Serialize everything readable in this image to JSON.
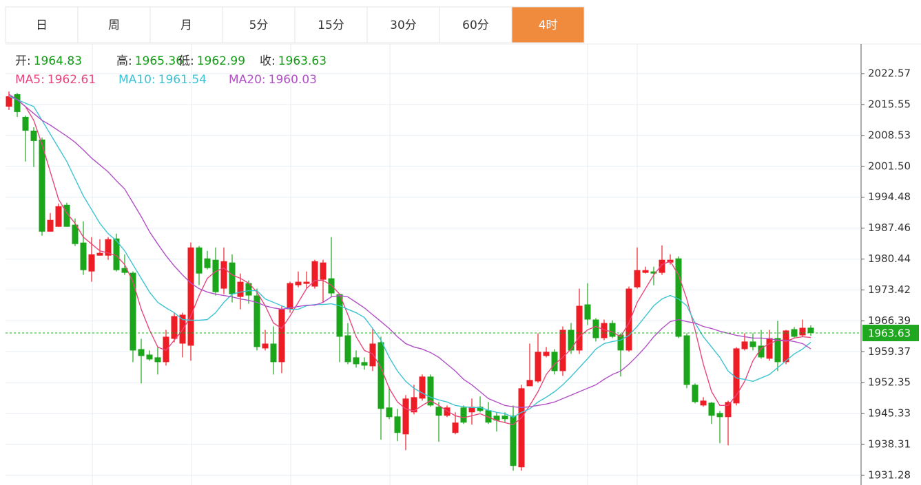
{
  "tabs": [
    "日",
    "周",
    "月",
    "5分",
    "15分",
    "30分",
    "60分",
    "4时"
  ],
  "active_tab": 7,
  "chart_data": {
    "type": "candlestick",
    "ohlc_labels": {
      "open": "开:",
      "high": "高:",
      "low": "低:",
      "close": "收:"
    },
    "up_color": "#ee1c25",
    "down_color": "#1aa51a",
    "open": [
      2015.07,
      2017.88,
      2012.73,
      2009.61,
      2007.58,
      1986.66,
      1987.76,
      1992.75,
      1988.23,
      1984.17,
      1977.61,
      1981.2,
      1981.2,
      1985.1,
      1978.39,
      1977.3,
      1959.97,
      1958.72,
      1958.1,
      1957.01,
      1962.31,
      1961.22,
      1960.75,
      1983.07,
      1980.58,
      1980.26,
      1973.71,
      1979.64,
      1971.83,
      1974.96,
      1972.15,
      1960.13,
      1961.22,
      1957.01,
      1969.02,
      1974.49,
      1974.8,
      1974.18,
      1975.74,
      1976.05,
      1972.46,
      1963.09,
      1958.1,
      1957.01,
      1956.07,
      1961.53,
      1946.7,
      1944.67,
      1940.61,
      1945.61,
      1948.73,
      1953.73,
      1946.86,
      1944.83,
      1940.93,
      1946.7,
      1945.61,
      1946.86,
      1946.08,
      1944.83,
      1944.83,
      1944.83,
      1933.12,
      1951.54,
      1952.63,
      1958.41,
      1959.35,
      1954.98,
      1964.34,
      1959.66,
      1970.12,
      1966.68,
      1962.47,
      1965.9,
      1963.25,
      1959.66,
      1974.02,
      1977.3,
      1977.61,
      1977.3,
      1979.64,
      1980.58,
      1963.09,
      1951.85,
      1947.17,
      1947.79,
      1945.45,
      1944.52,
      1947.64,
      1959.97,
      1961.69,
      1960.75,
      1957.79,
      1962.47,
      1957.01,
      1964.5,
      1963.09,
      1964.83
    ],
    "high": [
      2018.51,
      2018.2,
      2013.05,
      2010.39,
      2008.05,
      1990.88,
      1993.06,
      1993.22,
      1989.63,
      1989.01,
      1985.42,
      1984.95,
      1985.42,
      1986.2,
      1981.51,
      1977.61,
      1962.31,
      1959.66,
      1960.44,
      1964.34,
      1968.24,
      1968.24,
      1984.17,
      1983.39,
      1982.29,
      1983.07,
      1983.07,
      1981.51,
      1977.14,
      1975.58,
      1973.71,
      1964.34,
      1965.12,
      1969.81,
      1975.27,
      1977.61,
      1977.61,
      1980.26,
      1980.26,
      1985.42,
      1972.46,
      1965.9,
      1959.66,
      1958.1,
      1964.65,
      1962.78,
      1951.39,
      1946.39,
      1949.51,
      1951.85,
      1954.2,
      1954.2,
      1947.95,
      1947.17,
      1945.61,
      1947.17,
      1948.73,
      1949.2,
      1947.95,
      1945.61,
      1945.61,
      1947.17,
      1951.85,
      1961.22,
      1963.56,
      1960.44,
      1959.97,
      1965.12,
      1965.9,
      1973.71,
      1974.96,
      1967.0,
      1966.68,
      1966.53,
      1963.56,
      1974.18,
      1983.07,
      1978.7,
      1978.7,
      1983.54,
      1981.51,
      1981.04,
      1963.56,
      1952.17,
      1949.04,
      1947.95,
      1945.92,
      1948.26,
      1960.44,
      1963.56,
      1963.56,
      1964.34,
      1964.34,
      1966.37,
      1964.34,
      1964.97,
      1966.68,
      1965.36
    ],
    "low": [
      2014.29,
      2012.73,
      2002.59,
      2001.34,
      1985.73,
      1986.66,
      1987.76,
      1987.76,
      1983.39,
      1976.83,
      1975.27,
      1981.2,
      1980.26,
      1977.61,
      1976.83,
      1957.01,
      1952.17,
      1957.32,
      1954.2,
      1956.22,
      1961.53,
      1958.1,
      1957.32,
      1974.49,
      1978.08,
      1972.15,
      1972.46,
      1970.59,
      1969.02,
      1970.27,
      1959.66,
      1959.66,
      1954.2,
      1954.51,
      1968.24,
      1974.02,
      1973.71,
      1973.71,
      1970.59,
      1971.83,
      1957.01,
      1956.54,
      1955.76,
      1955.29,
      1954.98,
      1939.37,
      1944.05,
      1939.05,
      1937.02,
      1945.14,
      1948.26,
      1946.86,
      1938.9,
      1944.52,
      1940.61,
      1942.96,
      1942.8,
      1945.61,
      1942.96,
      1941.24,
      1943.27,
      1932.34,
      1932.34,
      1951.54,
      1952.32,
      1958.1,
      1954.2,
      1953.88,
      1958.88,
      1958.88,
      1965.43,
      1961.69,
      1962.0,
      1962.47,
      1953.73,
      1959.35,
      1973.71,
      1977.14,
      1974.49,
      1976.83,
      1979.17,
      1962.47,
      1951.07,
      1947.64,
      1946.86,
      1942.96,
      1938.59,
      1938.12,
      1947.17,
      1959.66,
      1959.66,
      1957.79,
      1957.32,
      1954.98,
      1956.54,
      1962.47,
      1962.78,
      1962.99
    ],
    "close": [
      2017.42,
      2013.83,
      2009.61,
      2007.27,
      1986.66,
      1989.32,
      1992.44,
      1987.76,
      1983.85,
      1977.92,
      1981.51,
      1981.83,
      1984.95,
      1977.92,
      1977.3,
      1959.66,
      1958.41,
      1957.63,
      1957.01,
      1962.78,
      1967.46,
      1967.78,
      1983.07,
      1977.14,
      1978.39,
      1972.93,
      1979.95,
      1972.46,
      1975.27,
      1972.15,
      1960.44,
      1961.22,
      1957.01,
      1969.02,
      1974.96,
      1975.27,
      1975.27,
      1979.95,
      1979.64,
      1972.62,
      1962.78,
      1957.01,
      1956.54,
      1956.22,
      1961.22,
      1946.39,
      1944.52,
      1940.93,
      1948.73,
      1949.04,
      1953.73,
      1947.17,
      1944.83,
      1946.7,
      1943.27,
      1943.27,
      1946.86,
      1945.92,
      1943.27,
      1943.74,
      1944.05,
      1933.43,
      1951.07,
      1952.95,
      1959.35,
      1959.35,
      1954.98,
      1964.34,
      1959.66,
      1969.81,
      1966.68,
      1962.47,
      1965.9,
      1962.78,
      1959.66,
      1973.71,
      1977.92,
      1977.92,
      1977.14,
      1980.26,
      1980.26,
      1962.78,
      1951.85,
      1947.95,
      1948.26,
      1944.83,
      1944.52,
      1947.95,
      1960.13,
      1961.69,
      1960.44,
      1958.1,
      1962.47,
      1957.01,
      1964.19,
      1962.78,
      1964.81,
      1963.63
    ],
    "moving_averages": [
      {
        "label": "MA5:",
        "color": "#e9457b",
        "values": [
          2017.42,
          2016.64,
          2015.07,
          2011.95,
          2006.49,
          2000.24,
          1994.0,
          1990.88,
          1988.54,
          1985.42,
          1983.85,
          1982.29,
          1981.83,
          1981.2,
          1979.17,
          1975.27,
          1969.02,
          1964.34,
          1960.44,
          1959.66,
          1962.0,
          1964.34,
          1967.46,
          1972.15,
          1976.05,
          1977.61,
          1978.39,
          1976.83,
          1976.05,
          1974.96,
          1972.93,
          1969.81,
          1965.9,
          1964.65,
          1967.46,
          1970.59,
          1973.71,
          1975.58,
          1975.58,
          1974.49,
          1972.46,
          1967.78,
          1962.78,
          1959.66,
          1958.88,
          1955.76,
          1951.07,
          1947.95,
          1946.39,
          1945.92,
          1947.17,
          1948.26,
          1947.17,
          1945.92,
          1944.83,
          1944.36,
          1944.83,
          1945.3,
          1944.52,
          1943.74,
          1943.27,
          1942.8,
          1944.36,
          1947.17,
          1950.29,
          1954.2,
          1956.54,
          1958.1,
          1959.97,
          1962.78,
          1964.34,
          1965.12,
          1964.34,
          1963.87,
          1962.78,
          1965.9,
          1970.59,
          1973.71,
          1976.83,
          1979.17,
          1979.95,
          1976.83,
          1971.37,
          1964.34,
          1956.54,
          1950.29,
          1947.17,
          1947.17,
          1949.51,
          1952.63,
          1957.32,
          1960.13,
          1961.22,
          1962.0,
          1961.69,
          1962.47,
          1962.78,
          1962.61
        ]
      },
      {
        "label": "MA10:",
        "color": "#3cc3d3",
        "values": [
          2017.42,
          2016.64,
          2015.85,
          2015.07,
          2011.95,
          2008.83,
          2005.71,
          2002.59,
          1998.68,
          1994.78,
          1991.66,
          1988.54,
          1986.2,
          1984.63,
          1982.29,
          1979.17,
          1976.05,
          1972.93,
          1970.59,
          1969.34,
          1968.24,
          1966.68,
          1966.53,
          1966.53,
          1966.68,
          1968.24,
          1970.59,
          1972.46,
          1972.93,
          1973.24,
          1973.24,
          1971.37,
          1970.59,
          1969.81,
          1969.02,
          1969.02,
          1969.81,
          1970.12,
          1970.12,
          1970.27,
          1969.81,
          1969.02,
          1968.24,
          1967.15,
          1964.65,
          1962.0,
          1958.1,
          1954.98,
          1952.63,
          1951.07,
          1949.98,
          1949.04,
          1948.42,
          1947.95,
          1947.17,
          1946.86,
          1946.7,
          1946.7,
          1946.08,
          1945.61,
          1945.3,
          1944.52,
          1945.61,
          1946.39,
          1947.95,
          1949.04,
          1950.29,
          1951.85,
          1953.73,
          1955.76,
          1957.79,
          1959.97,
          1961.22,
          1961.69,
          1962.0,
          1963.09,
          1965.12,
          1967.46,
          1969.81,
          1971.37,
          1972.15,
          1971.37,
          1969.81,
          1965.9,
          1962.78,
          1960.44,
          1958.1,
          1954.98,
          1953.41,
          1953.1,
          1952.63,
          1953.41,
          1954.2,
          1955.76,
          1957.32,
          1958.88,
          1959.97,
          1961.54
        ]
      },
      {
        "label": "MA20:",
        "color": "#b04fc6",
        "values": [
          2017.88,
          2016.64,
          2015.07,
          2013.51,
          2011.95,
          2010.86,
          2009.61,
          2008.36,
          2006.96,
          2005.24,
          2003.37,
          2001.81,
          2000.24,
          1998.22,
          1996.34,
          1993.22,
          1990.1,
          1986.66,
          1983.85,
          1981.2,
          1978.86,
          1976.83,
          1974.96,
          1973.71,
          1972.93,
          1972.46,
          1972.15,
          1971.83,
          1971.37,
          1971.05,
          1970.59,
          1969.81,
          1969.34,
          1969.02,
          1969.34,
          1969.65,
          1969.96,
          1969.96,
          1970.59,
          1971.83,
          1972.15,
          1971.83,
          1970.59,
          1969.34,
          1967.78,
          1966.22,
          1964.65,
          1962.78,
          1961.22,
          1960.44,
          1959.97,
          1959.19,
          1958.1,
          1956.54,
          1954.98,
          1953.1,
          1951.85,
          1950.29,
          1948.73,
          1947.95,
          1947.17,
          1946.86,
          1946.7,
          1946.86,
          1947.17,
          1947.48,
          1947.95,
          1948.73,
          1949.51,
          1950.29,
          1951.07,
          1951.85,
          1953.1,
          1954.2,
          1954.98,
          1956.54,
          1958.41,
          1960.44,
          1962.78,
          1964.65,
          1966.22,
          1966.68,
          1966.22,
          1965.9,
          1965.12,
          1964.65,
          1964.03,
          1963.56,
          1963.09,
          1962.78,
          1962.47,
          1962.47,
          1962.31,
          1962.0,
          1962.0,
          1961.69,
          1961.22,
          1960.03
        ]
      }
    ],
    "ylim": [
      1929.09,
      2029.29
    ],
    "yticks": [
      2022.57,
      2015.55,
      2008.53,
      {
        "value": 2001.5,
        "label": "2001.50"
      },
      1994.48,
      1987.46,
      1980.44,
      1973.42,
      1966.39,
      1959.37,
      1952.35,
      1945.33,
      1938.31,
      1931.28
    ],
    "grid": true,
    "last_price_line": true,
    "last_price_color": "#1fa81f"
  }
}
